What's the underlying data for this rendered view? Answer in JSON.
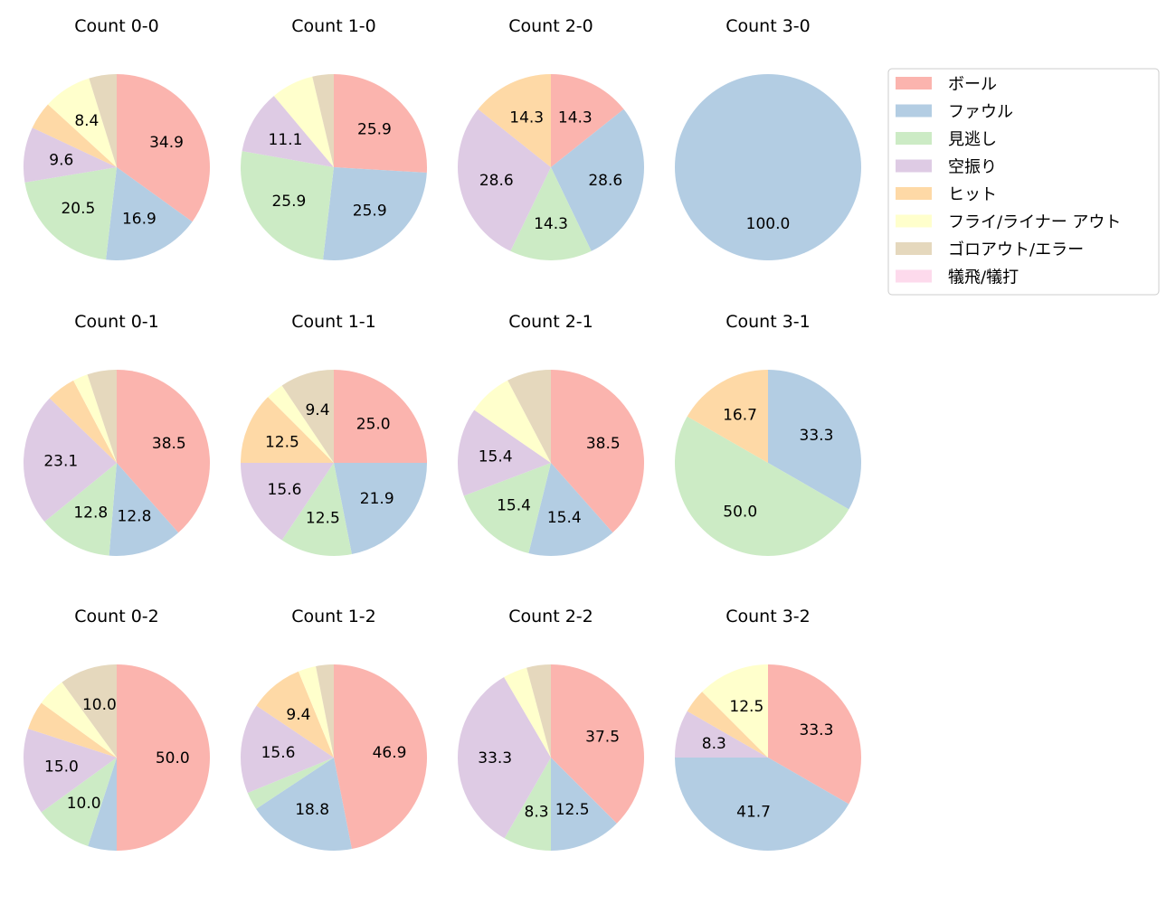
{
  "chart_data": {
    "type": "pie",
    "legend": {
      "placement": "top-right",
      "entries": [
        "ボール",
        "ファウル",
        "見逃し",
        "空振り",
        "ヒット",
        "フライ/ライナー アウト",
        "ゴロアウト/エラー",
        "犠飛/犠打"
      ]
    },
    "colors": [
      "#fbb4ae",
      "#b3cde3",
      "#ccebc5",
      "#decbe4",
      "#fed9a6",
      "#ffffcc",
      "#e5d8bd",
      "#fddaec"
    ],
    "start_angle": "top",
    "direction": "clockwise",
    "charts": [
      {
        "title": "Count 0-0",
        "values": [
          34.9,
          16.9,
          20.5,
          9.6,
          4.8,
          8.4,
          4.8,
          0
        ]
      },
      {
        "title": "Count 1-0",
        "values": [
          25.9,
          25.9,
          25.9,
          11.1,
          0,
          7.4,
          3.7,
          0
        ]
      },
      {
        "title": "Count 2-0",
        "values": [
          14.3,
          28.6,
          14.3,
          28.6,
          14.3,
          0,
          0,
          0
        ]
      },
      {
        "title": "Count 3-0",
        "values": [
          0,
          100.0,
          0,
          0,
          0,
          0,
          0,
          0
        ]
      },
      {
        "title": "Count 0-1",
        "values": [
          38.5,
          12.8,
          12.8,
          23.1,
          5.1,
          2.6,
          5.1,
          0
        ]
      },
      {
        "title": "Count 1-1",
        "values": [
          25.0,
          21.9,
          12.5,
          15.6,
          12.5,
          3.1,
          9.4,
          0
        ]
      },
      {
        "title": "Count 2-1",
        "values": [
          38.5,
          15.4,
          15.4,
          15.4,
          0,
          7.7,
          7.7,
          0
        ]
      },
      {
        "title": "Count 3-1",
        "values": [
          0,
          33.3,
          50.0,
          0,
          16.7,
          0,
          0,
          0
        ]
      },
      {
        "title": "Count 0-2",
        "values": [
          50.0,
          5.0,
          10.0,
          15.0,
          5.0,
          5.0,
          10.0,
          0
        ]
      },
      {
        "title": "Count 1-2",
        "values": [
          46.9,
          18.8,
          3.1,
          15.6,
          9.4,
          3.1,
          3.1,
          0
        ]
      },
      {
        "title": "Count 2-2",
        "values": [
          37.5,
          12.5,
          8.3,
          33.3,
          0,
          4.2,
          4.2,
          0
        ]
      },
      {
        "title": "Count 3-2",
        "values": [
          33.3,
          41.7,
          0,
          8.3,
          4.2,
          12.5,
          0,
          0
        ]
      }
    ]
  }
}
